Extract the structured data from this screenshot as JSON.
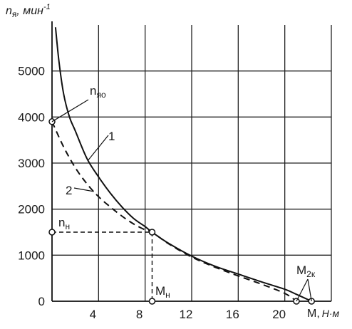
{
  "chart_data": {
    "type": "line",
    "ylabel": {
      "n": "n",
      "sub": "я",
      "rest": ", мин",
      "sup": "-1"
    },
    "xlabel": {
      "m": "M,",
      "unit": "Н·м"
    },
    "xlim": [
      0,
      24
    ],
    "ylim": [
      0,
      6000
    ],
    "x_ticks": [
      4,
      8,
      12,
      16,
      20
    ],
    "y_ticks": [
      0,
      1000,
      2000,
      3000,
      4000,
      5000
    ],
    "grid": true,
    "series": [
      {
        "name": "1",
        "style": "solid",
        "x": [
          0.3,
          0.6,
          1.0,
          1.5,
          2,
          3,
          4,
          5,
          6,
          7,
          8,
          8.6,
          10,
          12,
          14,
          16,
          18,
          20,
          21,
          22.3
        ],
        "y": [
          5950,
          5200,
          4500,
          4000,
          3700,
          3100,
          2700,
          2350,
          2050,
          1800,
          1620,
          1500,
          1260,
          980,
          760,
          590,
          420,
          260,
          150,
          0
        ]
      },
      {
        "name": "2",
        "style": "dashed",
        "x": [
          0,
          1,
          2,
          3,
          4,
          5,
          6,
          7,
          8,
          8.6,
          10,
          12,
          14,
          16,
          18,
          20,
          21
        ],
        "y": [
          3900,
          3350,
          2900,
          2550,
          2270,
          2050,
          1850,
          1680,
          1550,
          1500,
          1250,
          960,
          740,
          550,
          370,
          170,
          0
        ]
      }
    ],
    "points": [
      {
        "x": 0,
        "y": 3900
      },
      {
        "x": 0,
        "y": 1500
      },
      {
        "x": 8.6,
        "y": 1500
      },
      {
        "x": 8.6,
        "y": 0
      },
      {
        "x": 21,
        "y": 0
      },
      {
        "x": 22.3,
        "y": 0
      }
    ],
    "annotations": {
      "n_yao": {
        "n": "n",
        "sub": "яо"
      },
      "n_n": {
        "n": "n",
        "sub": "н"
      },
      "m_n": {
        "m": "M",
        "sub": "н"
      },
      "m_2k": {
        "m": "M",
        "sub": "2к"
      },
      "curve1": "1",
      "curve2": "2"
    }
  }
}
